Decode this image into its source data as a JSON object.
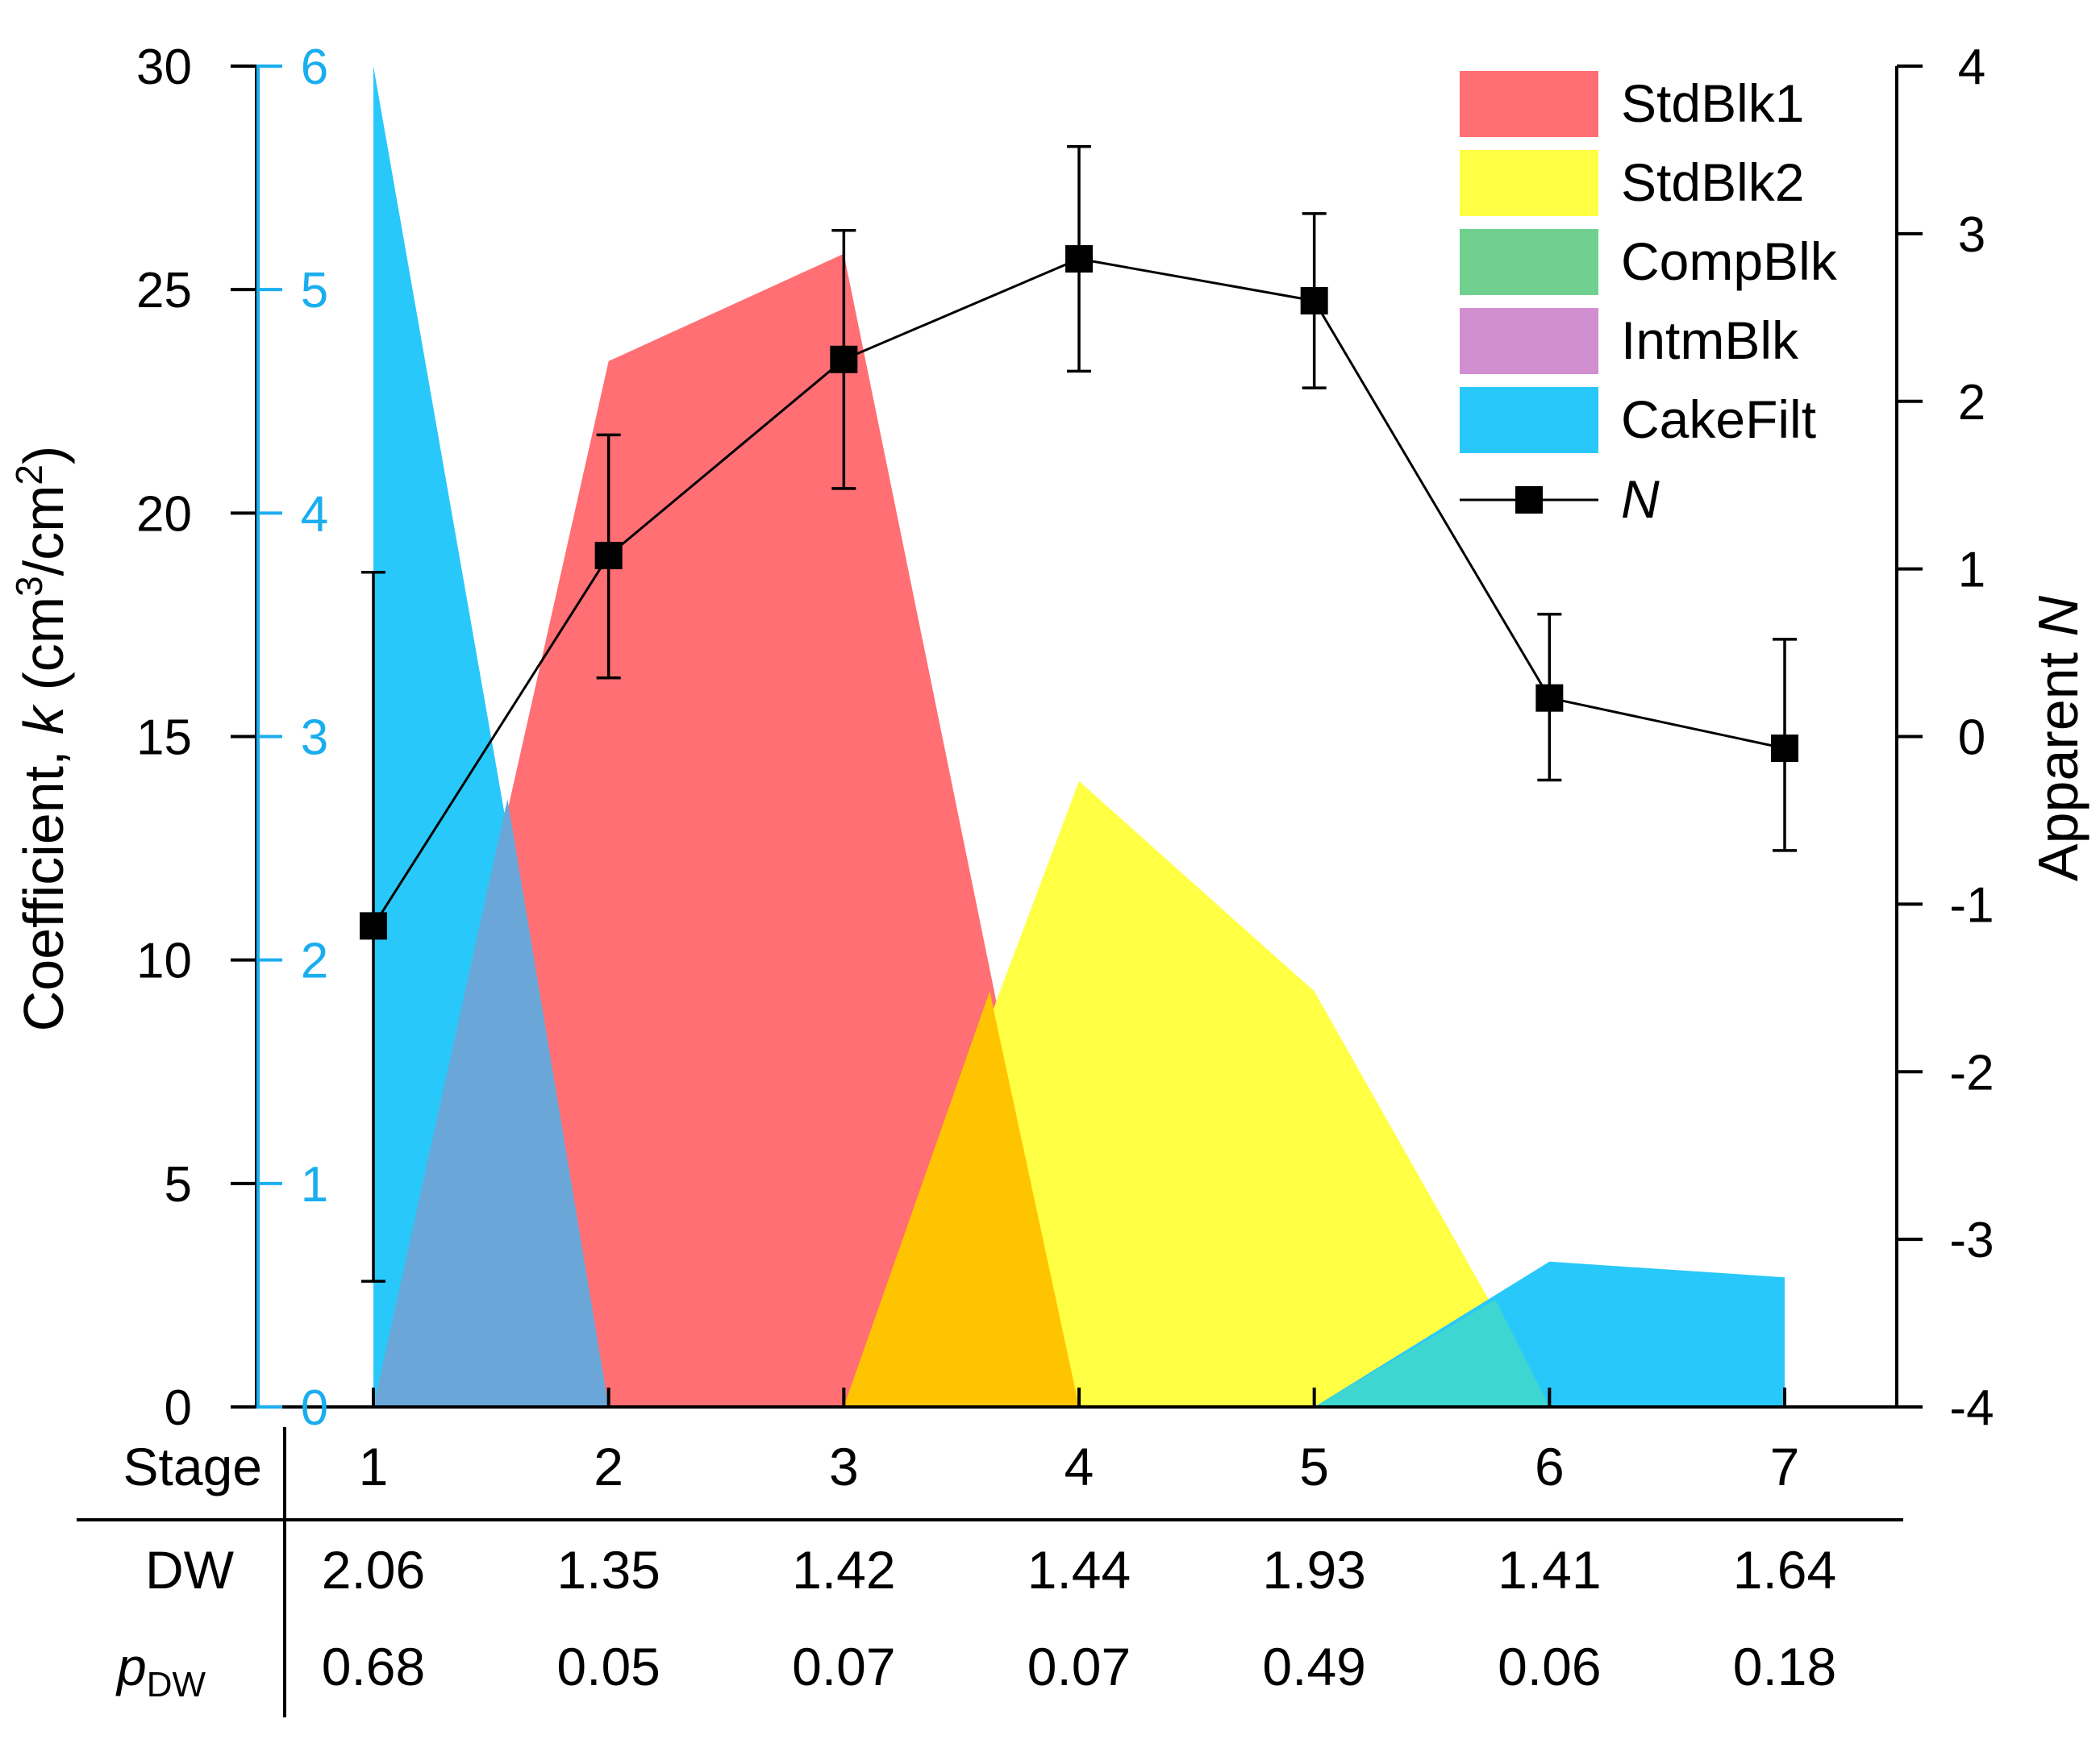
{
  "chart_data": {
    "type": "area",
    "x": [
      1,
      2,
      3,
      4,
      5,
      6,
      7
    ],
    "xlim": [
      0.5,
      7.8
    ],
    "left_axis": {
      "label_main": "Coefficient, ",
      "label_italic": "k",
      "label_unit_pre": " (cm",
      "label_sup1": "3",
      "label_unit_mid": "/cm",
      "label_sup2": "2",
      "label_unit_post": ")",
      "ylim": [
        0,
        30
      ],
      "ticks": [
        0,
        5,
        10,
        15,
        20,
        25,
        30
      ],
      "color": "#000000"
    },
    "left_axis_2": {
      "ylim": [
        0,
        6
      ],
      "ticks": [
        0,
        1,
        2,
        3,
        4,
        5,
        6
      ],
      "color": "#1AAEEF"
    },
    "right_axis": {
      "label_main": "Apparent ",
      "label_italic": "N",
      "ylim": [
        -4,
        4
      ],
      "ticks": [
        -4,
        -3,
        -2,
        -1,
        0,
        1,
        2,
        3,
        4
      ]
    },
    "series": [
      {
        "name": "StdBlk1",
        "color": "#FF6F73",
        "x": [
          1,
          2,
          3,
          4
        ],
        "values": [
          0,
          23.4,
          25.8,
          0
        ]
      },
      {
        "name": "StdBlk2",
        "color": "#FFFF44",
        "x": [
          3,
          4,
          5,
          6
        ],
        "values": [
          0,
          14.0,
          9.3,
          0
        ]
      },
      {
        "name": "CompBlk",
        "color": "#6FD08F",
        "x": [],
        "values": []
      },
      {
        "name": "IntmBlk",
        "color": "#D18FD0",
        "x": [],
        "values": []
      },
      {
        "name": "CakeFilt",
        "color": "#29C8FA",
        "axis": "left_axis_2",
        "x": [
          1,
          2,
          5,
          6,
          7
        ],
        "values": [
          6.0,
          0,
          0,
          0.65,
          0.58
        ]
      }
    ],
    "line_series": {
      "name": "N",
      "axis": "right_axis",
      "x": [
        1,
        2,
        3,
        4,
        5,
        6,
        7
      ],
      "values": [
        -1.13,
        1.08,
        2.25,
        2.85,
        2.6,
        0.23,
        -0.07
      ],
      "err_upper": [
        0.98,
        1.8,
        3.02,
        3.52,
        3.12,
        0.73,
        0.58
      ],
      "err_lower": [
        -3.25,
        0.35,
        1.48,
        2.18,
        2.08,
        -0.26,
        -0.68
      ]
    },
    "overlaps": [
      {
        "color": "#6AA7D8",
        "x": [
          1,
          2,
          1.57
        ],
        "values": [
          0,
          0,
          13.6
        ]
      },
      {
        "color": "#FFC400",
        "x": [
          3,
          4,
          3.62
        ],
        "values": [
          0,
          0,
          9.3
        ]
      },
      {
        "color": "#3ED6D0",
        "x": [
          5,
          6,
          5.77
        ],
        "values": [
          0,
          0,
          2.4
        ]
      }
    ],
    "table": {
      "row_labels": {
        "stage": "Stage",
        "dw": "DW",
        "pdw_main": "p",
        "pdw_sub": "DW"
      },
      "stages": [
        "1",
        "2",
        "3",
        "4",
        "5",
        "6",
        "7"
      ],
      "dw": [
        "2.06",
        "1.35",
        "1.42",
        "1.44",
        "1.93",
        "1.41",
        "1.64"
      ],
      "pdw": [
        "0.68",
        "0.05",
        "0.07",
        "0.07",
        "0.49",
        "0.06",
        "0.18"
      ]
    }
  }
}
